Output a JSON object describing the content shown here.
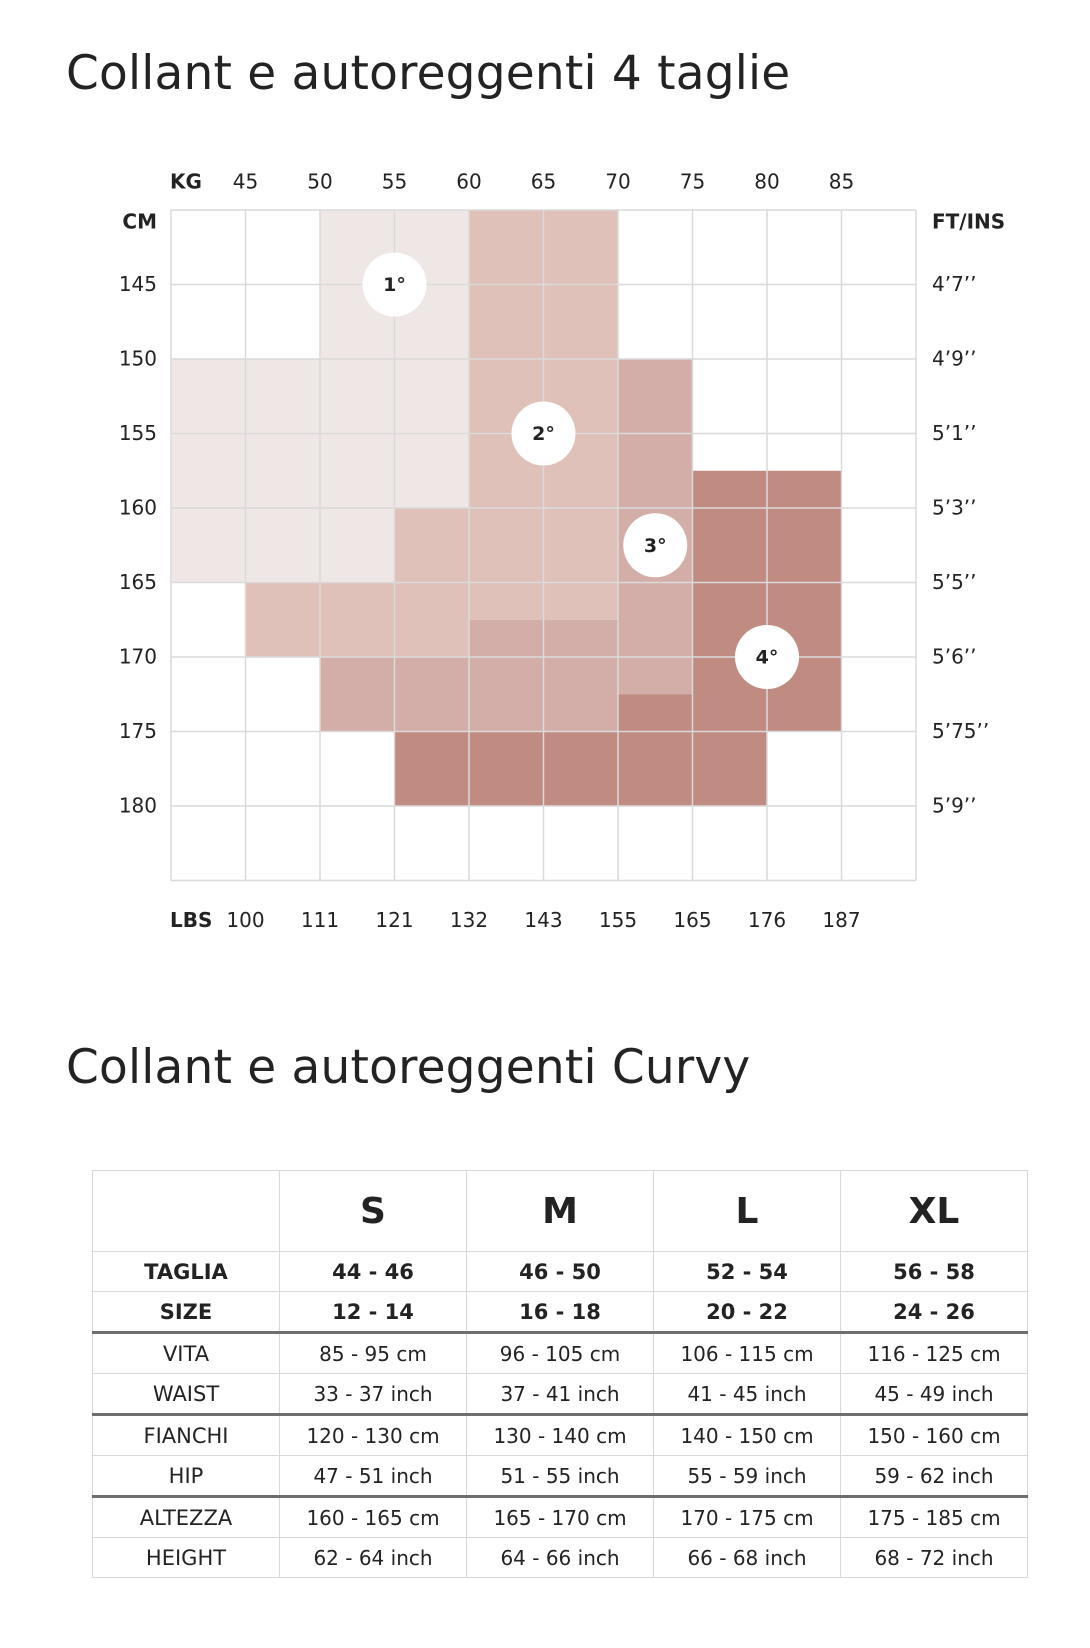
{
  "titles": {
    "grid": "Collant e autoreggenti 4 taglie",
    "table": "Collant e autoreggenti Curvy"
  },
  "chart_data": {
    "type": "heatmap",
    "axis_titles": {
      "top": "KG",
      "left": "CM",
      "right": "FT/INS",
      "bottom": "LBS"
    },
    "kg_ticks": [
      "45",
      "50",
      "55",
      "60",
      "65",
      "70",
      "75",
      "80",
      "85"
    ],
    "lbs_ticks": [
      "100",
      "111",
      "121",
      "132",
      "143",
      "155",
      "165",
      "176",
      "187"
    ],
    "cm_ticks": [
      "145",
      "150",
      "155",
      "160",
      "165",
      "170",
      "175",
      "180"
    ],
    "ftin_ticks": [
      "4’7’’",
      "4’9’’",
      "5’1’’",
      "5’3’’",
      "5’5’’",
      "5’6’’",
      "5’75’’",
      "5’9’’"
    ],
    "weight_range_kg": [
      40,
      90
    ],
    "height_range_cm": [
      140,
      185
    ],
    "grid": true,
    "colors": {
      "1": "#efe7e5",
      "2": "#dfc1b9",
      "3": "#d3aea8",
      "4": "#c08b81",
      "gridline": "#dadada"
    },
    "regions": [
      {
        "size": "1",
        "kg": [
          50,
          60
        ],
        "cm": [
          140,
          150
        ]
      },
      {
        "size": "1",
        "kg": [
          40,
          60
        ],
        "cm": [
          150,
          160
        ]
      },
      {
        "size": "1",
        "kg": [
          40,
          55
        ],
        "cm": [
          160,
          165
        ]
      },
      {
        "size": "2",
        "kg": [
          60,
          70
        ],
        "cm": [
          140,
          165
        ]
      },
      {
        "size": "2",
        "kg": [
          55,
          60
        ],
        "cm": [
          160,
          165
        ]
      },
      {
        "size": "2",
        "kg": [
          45,
          60
        ],
        "cm": [
          165,
          170
        ]
      },
      {
        "size": "2",
        "kg": [
          60,
          70
        ],
        "cm": [
          165,
          167.5
        ]
      },
      {
        "size": "3",
        "kg": [
          70,
          75
        ],
        "cm": [
          150,
          172.5
        ]
      },
      {
        "size": "3",
        "kg": [
          60,
          70
        ],
        "cm": [
          167.5,
          170
        ]
      },
      {
        "size": "3",
        "kg": [
          50,
          70
        ],
        "cm": [
          170,
          175
        ]
      },
      {
        "size": "3",
        "kg": [
          70,
          75
        ],
        "cm": [
          172.5,
          175
        ]
      },
      {
        "size": "4",
        "kg": [
          75,
          85
        ],
        "cm": [
          157.5,
          175
        ]
      },
      {
        "size": "4",
        "kg": [
          70,
          75
        ],
        "cm": [
          172.5,
          175
        ]
      },
      {
        "size": "4",
        "kg": [
          55,
          80
        ],
        "cm": [
          175,
          180
        ]
      }
    ],
    "badges": [
      {
        "label": "1°",
        "kg": 55,
        "cm": 145
      },
      {
        "label": "2°",
        "kg": 65,
        "cm": 155
      },
      {
        "label": "3°",
        "kg": 72.5,
        "cm": 162.5
      },
      {
        "label": "4°",
        "kg": 80,
        "cm": 170
      }
    ]
  },
  "table": {
    "headers": [
      "",
      "S",
      "M",
      "L",
      "XL"
    ],
    "rows": [
      {
        "label": "TAGLIA",
        "values": [
          "44 - 46",
          "46 - 50",
          "52 - 54",
          "56 - 58"
        ]
      },
      {
        "label": "SIZE",
        "values": [
          "12 - 14",
          "16 - 18",
          "20 - 22",
          "24 - 26"
        ]
      },
      {
        "label": "VITA",
        "values": [
          "85 - 95 cm",
          "96 - 105 cm",
          "106 - 115 cm",
          "116 - 125 cm"
        ]
      },
      {
        "label": "WAIST",
        "values": [
          "33 - 37 inch",
          "37 - 41 inch",
          "41 - 45 inch",
          "45 - 49 inch"
        ]
      },
      {
        "label": "FIANCHI",
        "values": [
          "120 - 130 cm",
          "130 - 140 cm",
          "140 - 150 cm",
          "150 - 160 cm"
        ]
      },
      {
        "label": "HIP",
        "values": [
          "47 - 51 inch",
          "51 - 55 inch",
          "55 - 59 inch",
          "59 - 62 inch"
        ]
      },
      {
        "label": "ALTEZZA",
        "values": [
          "160 - 165 cm",
          "165 - 170 cm",
          "170 - 175 cm",
          "175 - 185 cm"
        ]
      },
      {
        "label": "HEIGHT",
        "values": [
          "62 - 64 inch",
          "64 - 66 inch",
          "66 - 68 inch",
          "68 - 72 inch"
        ]
      }
    ]
  }
}
